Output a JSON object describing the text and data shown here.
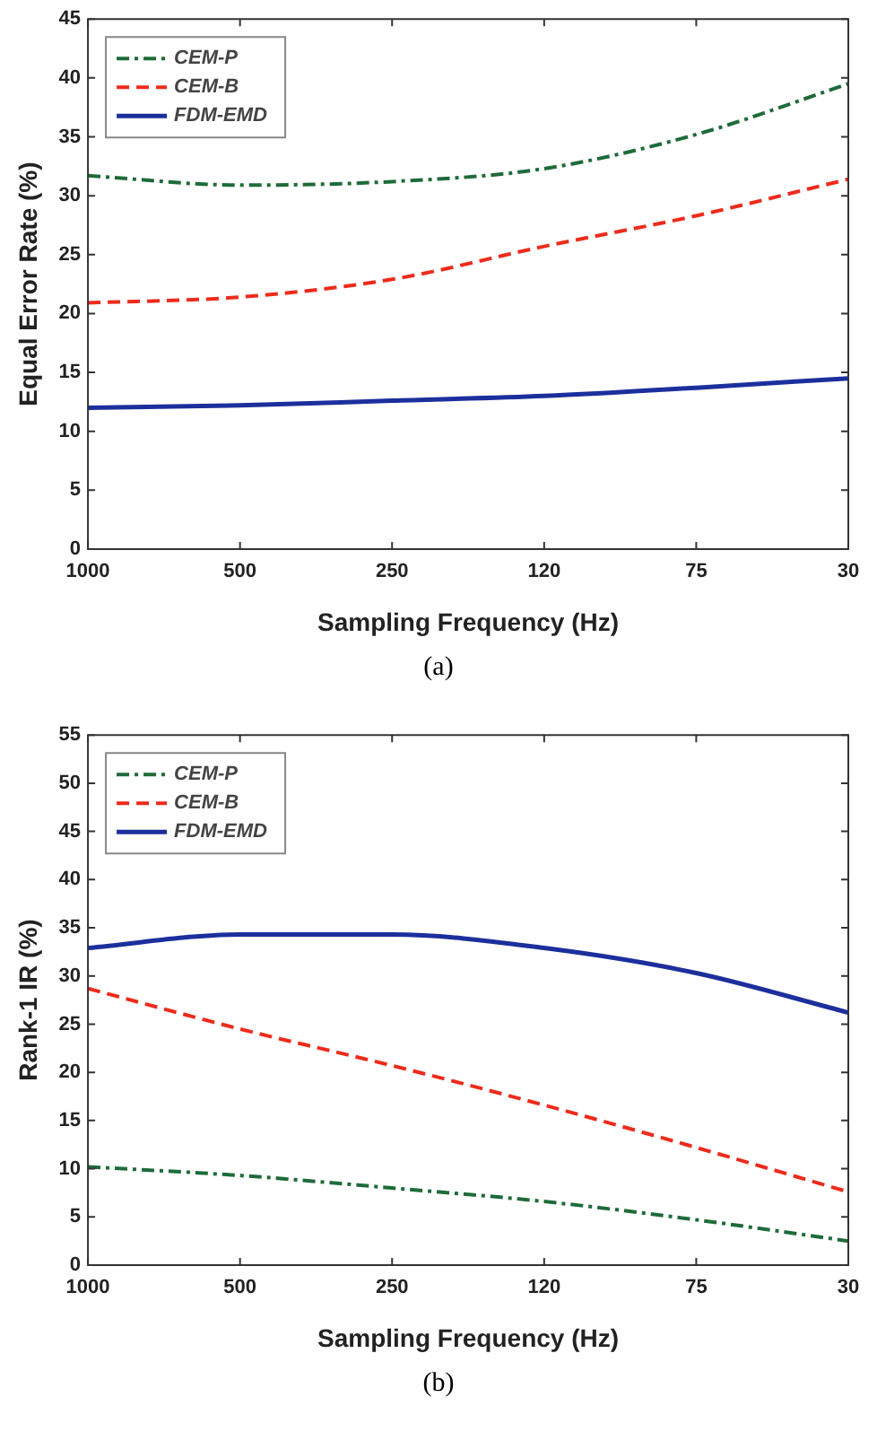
{
  "chart_data": [
    {
      "type": "line",
      "xlabel": "Sampling Frequency (Hz)",
      "ylabel": "Equal Error Rate (%)",
      "categories": [
        "1000",
        "500",
        "250",
        "120",
        "75",
        "30"
      ],
      "ylim": [
        0,
        45
      ],
      "yticks": [
        0,
        5,
        10,
        15,
        20,
        25,
        30,
        35,
        40,
        45
      ],
      "grid": false,
      "legend": "top left",
      "marker": "none",
      "annotations": [
        "(a)"
      ],
      "series": [
        {
          "name": "CEM-P",
          "color": "#1e6b3a",
          "line_style": "dashdot",
          "values": [
            31.7,
            30.9,
            31.2,
            32.3,
            35.2,
            39.5
          ]
        },
        {
          "name": "CEM-B",
          "color": "#ee2b1c",
          "line_style": "dashed",
          "values": [
            20.9,
            21.4,
            22.9,
            25.7,
            28.3,
            31.4
          ]
        },
        {
          "name": "FDM-EMD",
          "color": "#1c2f9c",
          "line_style": "solid",
          "values": [
            12.0,
            12.2,
            12.6,
            13.0,
            13.7,
            14.5
          ]
        }
      ]
    },
    {
      "type": "line",
      "xlabel": "Sampling Frequency (Hz)",
      "ylabel": "Rank-1 IR (%)",
      "categories": [
        "1000",
        "500",
        "250",
        "120",
        "75",
        "30"
      ],
      "ylim": [
        0,
        55
      ],
      "yticks": [
        0,
        5,
        10,
        15,
        20,
        25,
        30,
        35,
        40,
        45,
        50,
        55
      ],
      "grid": false,
      "legend": "top left",
      "marker": "none",
      "annotations": [
        "(b)"
      ],
      "series": [
        {
          "name": "CEM-P",
          "color": "#1e6b3a",
          "line_style": "dashdot",
          "values": [
            10.2,
            9.3,
            8.0,
            6.6,
            4.7,
            2.5
          ]
        },
        {
          "name": "CEM-B",
          "color": "#ee2b1c",
          "line_style": "dashed",
          "values": [
            28.7,
            24.5,
            20.7,
            16.6,
            12.2,
            7.6
          ]
        },
        {
          "name": "FDM-EMD",
          "color": "#1c2f9c",
          "line_style": "solid",
          "values": [
            32.9,
            34.3,
            34.3,
            32.9,
            30.3,
            26.2
          ]
        }
      ]
    }
  ]
}
